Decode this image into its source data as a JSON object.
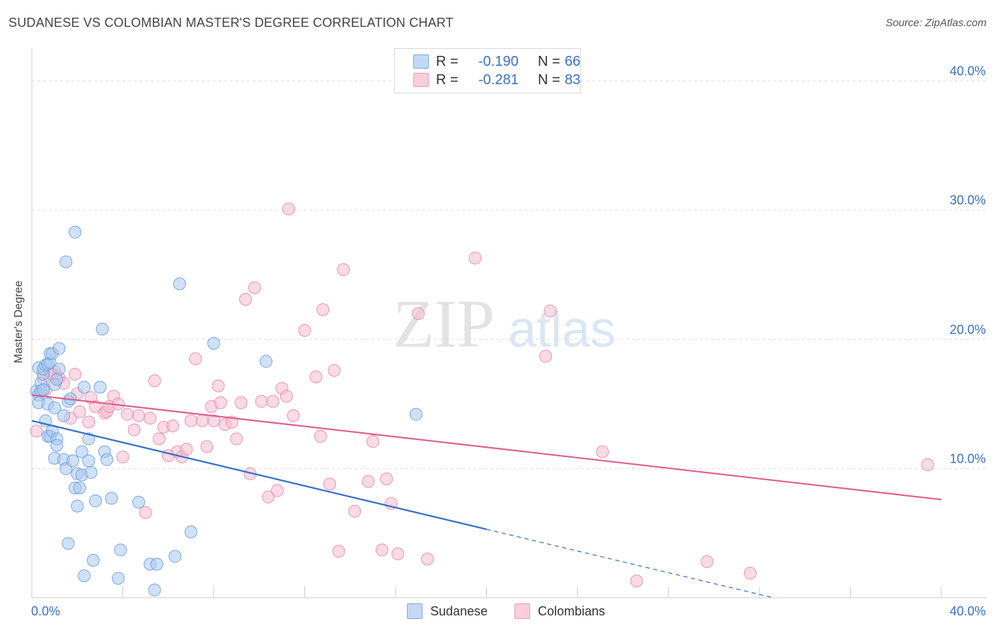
{
  "title": "SUDANESE VS COLOMBIAN MASTER'S DEGREE CORRELATION CHART",
  "source": "Source: ZipAtlas.com",
  "watermark": {
    "zip": "ZIP",
    "atlas": "atlas"
  },
  "colors": {
    "sudanese_fill": "#a9c8f0",
    "sudanese_stroke": "#6b9fe0",
    "sudanese_line": "#2f6fcc",
    "colombian_fill": "#f6bcd0",
    "colombian_stroke": "#e88aaa",
    "colombian_line": "#e0608c",
    "value_text": "#3a6fc9",
    "grid": "#dddddd"
  },
  "stats": {
    "rows": [
      {
        "label": "R =",
        "r": "-0.190",
        "n_label": "N =",
        "n": "66"
      },
      {
        "label": "R =",
        "r": "-0.281",
        "n_label": "N =",
        "n": "83"
      }
    ]
  },
  "legend": {
    "sudanese": "Sudanese",
    "colombians": "Colombians"
  },
  "chart_data": {
    "type": "scatter",
    "title": "SUDANESE VS COLOMBIAN MASTER'S DEGREE CORRELATION CHART",
    "xlabel": "",
    "ylabel": "Master's Degree",
    "xlim": [
      0,
      40
    ],
    "ylim": [
      0,
      42
    ],
    "x_tick_labels": [
      "0.0%",
      "40.0%"
    ],
    "y_ticks": [
      10,
      20,
      30,
      40
    ],
    "y_tick_labels": [
      "10.0%",
      "20.0%",
      "30.0%",
      "40.0%"
    ],
    "legend_position": "bottom-center",
    "series": [
      {
        "name": "Sudanese",
        "r": -0.19,
        "n": 66,
        "trend": {
          "x0": 0,
          "y0": 13.7,
          "x1": 20.0,
          "y1": 5.3,
          "dash_x1": 40.0,
          "dash_y1": -3.1
        },
        "points": [
          [
            0.2,
            16.0
          ],
          [
            0.3,
            15.7
          ],
          [
            0.3,
            15.1
          ],
          [
            0.4,
            16.6
          ],
          [
            0.3,
            17.8
          ],
          [
            0.5,
            17.3
          ],
          [
            0.5,
            17.7
          ],
          [
            0.6,
            18.0
          ],
          [
            0.7,
            18.1
          ],
          [
            0.8,
            18.2
          ],
          [
            0.8,
            18.9
          ],
          [
            0.9,
            18.9
          ],
          [
            0.4,
            16.0
          ],
          [
            0.5,
            16.1
          ],
          [
            0.6,
            13.7
          ],
          [
            0.7,
            15.0
          ],
          [
            0.7,
            12.5
          ],
          [
            0.8,
            12.5
          ],
          [
            0.9,
            12.9
          ],
          [
            1.0,
            16.5
          ],
          [
            1.2,
            17.7
          ],
          [
            1.2,
            19.3
          ],
          [
            1.1,
            16.9
          ],
          [
            1.0,
            14.7
          ],
          [
            1.1,
            12.3
          ],
          [
            1.1,
            11.8
          ],
          [
            1.0,
            10.8
          ],
          [
            1.4,
            10.7
          ],
          [
            1.5,
            10.0
          ],
          [
            1.6,
            15.2
          ],
          [
            1.7,
            15.4
          ],
          [
            1.4,
            14.1
          ],
          [
            1.8,
            10.6
          ],
          [
            1.9,
            8.5
          ],
          [
            2.0,
            7.1
          ],
          [
            2.0,
            9.6
          ],
          [
            2.1,
            8.5
          ],
          [
            2.2,
            11.3
          ],
          [
            2.2,
            9.5
          ],
          [
            2.3,
            16.3
          ],
          [
            2.5,
            12.3
          ],
          [
            2.5,
            10.6
          ],
          [
            2.6,
            9.7
          ],
          [
            2.8,
            7.5
          ],
          [
            3.0,
            16.3
          ],
          [
            3.1,
            20.8
          ],
          [
            3.2,
            11.3
          ],
          [
            3.3,
            10.7
          ],
          [
            3.5,
            7.7
          ],
          [
            3.8,
            1.5
          ],
          [
            3.9,
            3.7
          ],
          [
            4.7,
            7.4
          ],
          [
            5.2,
            2.6
          ],
          [
            5.4,
            0.6
          ],
          [
            5.5,
            2.6
          ],
          [
            6.3,
            3.2
          ],
          [
            6.5,
            24.3
          ],
          [
            7.0,
            5.1
          ],
          [
            1.5,
            26.0
          ],
          [
            1.9,
            28.3
          ],
          [
            8.0,
            19.7
          ],
          [
            10.3,
            18.3
          ],
          [
            16.9,
            14.2
          ],
          [
            2.3,
            1.7
          ],
          [
            2.7,
            2.9
          ],
          [
            1.6,
            4.2
          ]
        ]
      },
      {
        "name": "Colombians",
        "r": -0.281,
        "n": 83,
        "trend": {
          "x0": 0,
          "y0": 15.7,
          "x1": 40.0,
          "y1": 7.6
        },
        "points": [
          [
            0.2,
            12.9
          ],
          [
            0.5,
            17.0
          ],
          [
            0.6,
            16.1
          ],
          [
            0.8,
            17.4
          ],
          [
            1.0,
            17.5
          ],
          [
            1.2,
            17.0
          ],
          [
            1.4,
            16.6
          ],
          [
            1.7,
            13.9
          ],
          [
            1.9,
            17.3
          ],
          [
            2.0,
            15.8
          ],
          [
            2.1,
            14.4
          ],
          [
            2.5,
            13.6
          ],
          [
            2.6,
            15.5
          ],
          [
            2.8,
            14.8
          ],
          [
            3.2,
            14.3
          ],
          [
            3.3,
            14.4
          ],
          [
            3.4,
            14.8
          ],
          [
            3.6,
            15.6
          ],
          [
            3.8,
            15.0
          ],
          [
            4.0,
            10.9
          ],
          [
            4.2,
            14.2
          ],
          [
            4.5,
            13.0
          ],
          [
            4.7,
            14.1
          ],
          [
            5.0,
            6.6
          ],
          [
            5.2,
            13.9
          ],
          [
            5.4,
            16.8
          ],
          [
            5.6,
            12.3
          ],
          [
            5.8,
            13.2
          ],
          [
            6.0,
            11.0
          ],
          [
            6.2,
            13.3
          ],
          [
            6.4,
            11.3
          ],
          [
            6.6,
            10.9
          ],
          [
            6.8,
            11.5
          ],
          [
            7.0,
            13.7
          ],
          [
            7.2,
            18.5
          ],
          [
            7.5,
            13.7
          ],
          [
            7.7,
            11.7
          ],
          [
            7.9,
            14.8
          ],
          [
            8.0,
            13.7
          ],
          [
            8.2,
            16.4
          ],
          [
            8.3,
            15.1
          ],
          [
            8.5,
            13.4
          ],
          [
            8.8,
            13.6
          ],
          [
            9.0,
            12.3
          ],
          [
            9.2,
            15.1
          ],
          [
            9.4,
            23.1
          ],
          [
            9.6,
            9.6
          ],
          [
            9.8,
            24.0
          ],
          [
            10.1,
            15.2
          ],
          [
            10.4,
            7.8
          ],
          [
            10.6,
            15.2
          ],
          [
            10.8,
            8.3
          ],
          [
            11.0,
            16.2
          ],
          [
            11.2,
            15.6
          ],
          [
            11.5,
            14.1
          ],
          [
            11.3,
            30.1
          ],
          [
            12.0,
            20.7
          ],
          [
            12.5,
            17.1
          ],
          [
            12.7,
            12.5
          ],
          [
            12.8,
            22.3
          ],
          [
            13.1,
            8.8
          ],
          [
            13.3,
            17.6
          ],
          [
            13.5,
            3.6
          ],
          [
            13.7,
            25.4
          ],
          [
            14.2,
            6.7
          ],
          [
            14.8,
            9.0
          ],
          [
            15.0,
            12.1
          ],
          [
            15.4,
            3.7
          ],
          [
            15.6,
            9.2
          ],
          [
            15.8,
            7.3
          ],
          [
            16.1,
            3.4
          ],
          [
            17.0,
            22.0
          ],
          [
            17.4,
            3.0
          ],
          [
            19.5,
            26.3
          ],
          [
            22.6,
            18.7
          ],
          [
            22.8,
            22.2
          ],
          [
            25.1,
            11.3
          ],
          [
            26.6,
            1.3
          ],
          [
            29.7,
            2.8
          ],
          [
            31.6,
            1.9
          ],
          [
            39.4,
            10.3
          ],
          [
            1.1,
            16.9
          ],
          [
            0.9,
            17.3
          ]
        ]
      }
    ]
  }
}
